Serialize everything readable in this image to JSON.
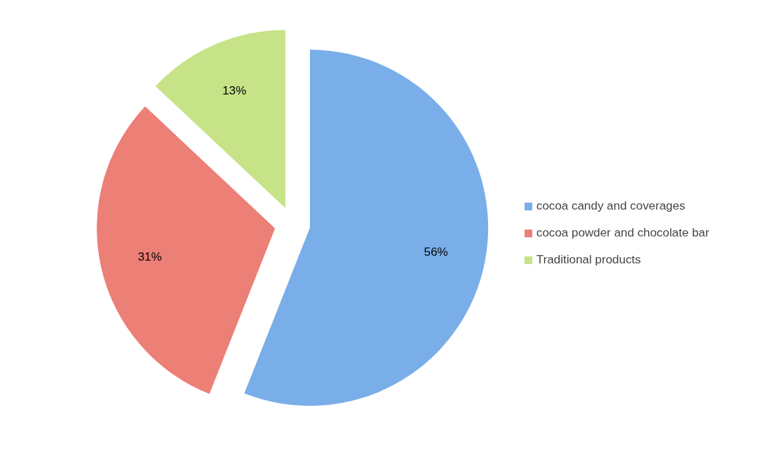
{
  "chart_data": {
    "type": "pie",
    "categories": [
      "cocoa candy and coverages",
      "cocoa powder and chocolate bar",
      "Traditional products"
    ],
    "values": [
      56,
      31,
      13
    ],
    "colors": [
      "#79aee9",
      "#ec7f76",
      "#c6e388"
    ],
    "value_labels": [
      "56%",
      "31%",
      "13%"
    ],
    "legend": "right"
  }
}
